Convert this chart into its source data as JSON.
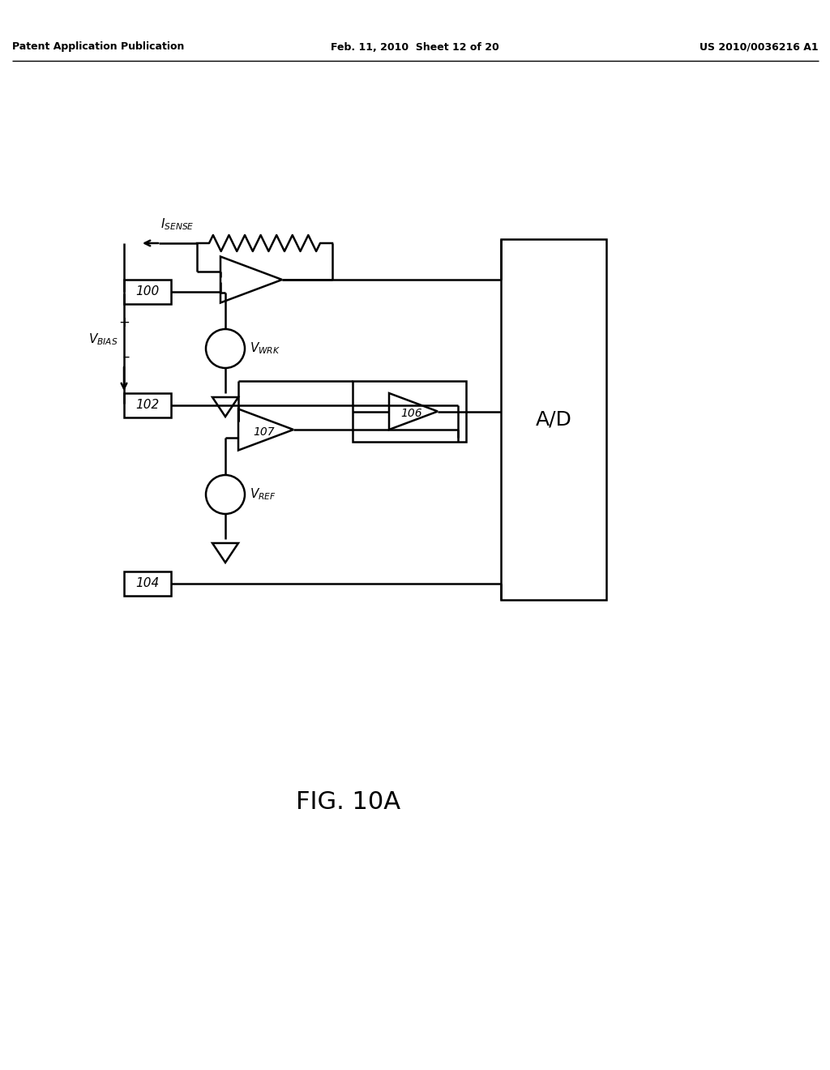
{
  "bg_color": "#ffffff",
  "line_color": "#000000",
  "fig_width": 10.24,
  "fig_height": 13.2,
  "header_left": "Patent Application Publication",
  "header_mid": "Feb. 11, 2010  Sheet 12 of 20",
  "header_right": "US 2010/0036216 A1",
  "figure_label": "FIG. 10A",
  "box100": "100",
  "box102": "102",
  "box104": "104",
  "amp106": "106",
  "amp107": "107",
  "AD_label": "A/D",
  "isense_label": "I",
  "isense_sub": "SENSE",
  "vbias_label": "V",
  "vbias_sub": "BIAS",
  "vwrk_label": "V",
  "vwrk_sub": "WRK",
  "vref_label": "V",
  "vref_sub": "REF"
}
